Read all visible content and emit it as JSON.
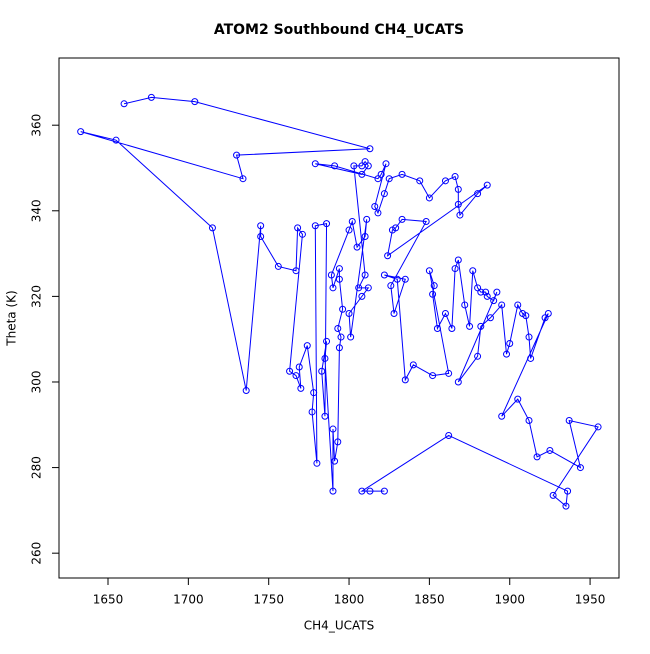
{
  "chart_data": {
    "type": "scatter",
    "title": "ATOM2 Southbound CH4_UCATS",
    "x_label": "CH4_UCATS",
    "y_label": "Theta (K)",
    "color": "#0000ff",
    "lines": true,
    "x": [
      1660,
      1677,
      1704,
      1813,
      1730,
      1734,
      1633,
      1655,
      1715,
      1736,
      1745,
      1745,
      1756,
      1767,
      1768,
      1771,
      1763,
      1767,
      1770,
      1769,
      1774,
      1778,
      1777,
      1780,
      1779,
      1786,
      1785,
      1783,
      1786,
      1785,
      1790,
      1790,
      1791,
      1793,
      1794,
      1795,
      1793,
      1796,
      1794,
      1794,
      1790,
      1789,
      1800,
      1802,
      1805,
      1810,
      1811,
      1801,
      1800,
      1808,
      1812,
      1806,
      1810,
      1803,
      1808,
      1810,
      1812,
      1808,
      1779,
      1791,
      1818,
      1820,
      1823,
      1816,
      1818,
      1822,
      1825,
      1833,
      1844,
      1850,
      1860,
      1866,
      1868,
      1868,
      1869,
      1880,
      1886,
      1824,
      1827,
      1829,
      1833,
      1848,
      1826,
      1828,
      1835,
      1822,
      1830,
      1835,
      1840,
      1852,
      1862,
      1850,
      1853,
      1852,
      1855,
      1860,
      1864,
      1866,
      1868,
      1872,
      1875,
      1877,
      1880,
      1882,
      1885,
      1886,
      1890,
      1892,
      1868,
      1880,
      1882,
      1888,
      1895,
      1898,
      1900,
      1905,
      1908,
      1910,
      1912,
      1913,
      1922,
      1924,
      1895,
      1905,
      1912,
      1917,
      1925,
      1944,
      1937,
      1955,
      1927,
      1935,
      1936,
      1862,
      1808,
      1813,
      1822
    ],
    "values": [
      365,
      366.5,
      365.5,
      354.5,
      353,
      347.5,
      358.5,
      356.5,
      336,
      298,
      336.5,
      334,
      327,
      326,
      336,
      334.5,
      302.5,
      301.5,
      298.5,
      303.5,
      308.5,
      297.5,
      293,
      281,
      336.5,
      337,
      292,
      302.5,
      309.5,
      305.5,
      274.5,
      289,
      281.5,
      286,
      308,
      310.5,
      312.5,
      317,
      324,
      326.5,
      322,
      325,
      335.5,
      337.5,
      331.5,
      334,
      338,
      310.5,
      316,
      320,
      322,
      322,
      325,
      350.5,
      350.5,
      351.5,
      350.5,
      348.5,
      351,
      350.5,
      347.5,
      348.5,
      351,
      341,
      339.5,
      344,
      347.5,
      348.5,
      347,
      343,
      347,
      348,
      345,
      341.5,
      339,
      344,
      346,
      329.5,
      335.5,
      336,
      338,
      337.5,
      322.5,
      316,
      324,
      325,
      324,
      300.5,
      304,
      301.5,
      302,
      326,
      322.5,
      320.5,
      312.5,
      316,
      312.5,
      326.5,
      328.5,
      318,
      313,
      326,
      322,
      321,
      321,
      320,
      319,
      321,
      300,
      306,
      313,
      315,
      318,
      306.5,
      309,
      318,
      316,
      315.5,
      310.5,
      305.5,
      315,
      316,
      292,
      296,
      291,
      282.5,
      284,
      280,
      291,
      289.5,
      273.5,
      271,
      274.5,
      287.5,
      274.5,
      274.5,
      274.5
    ],
    "xlim": [
      1619.5,
      1968
    ],
    "ylim": [
      254.2,
      375.7
    ],
    "xticks": [
      1650,
      1700,
      1750,
      1800,
      1850,
      1900,
      1950
    ],
    "yticks": [
      260,
      280,
      300,
      320,
      340,
      360
    ]
  }
}
